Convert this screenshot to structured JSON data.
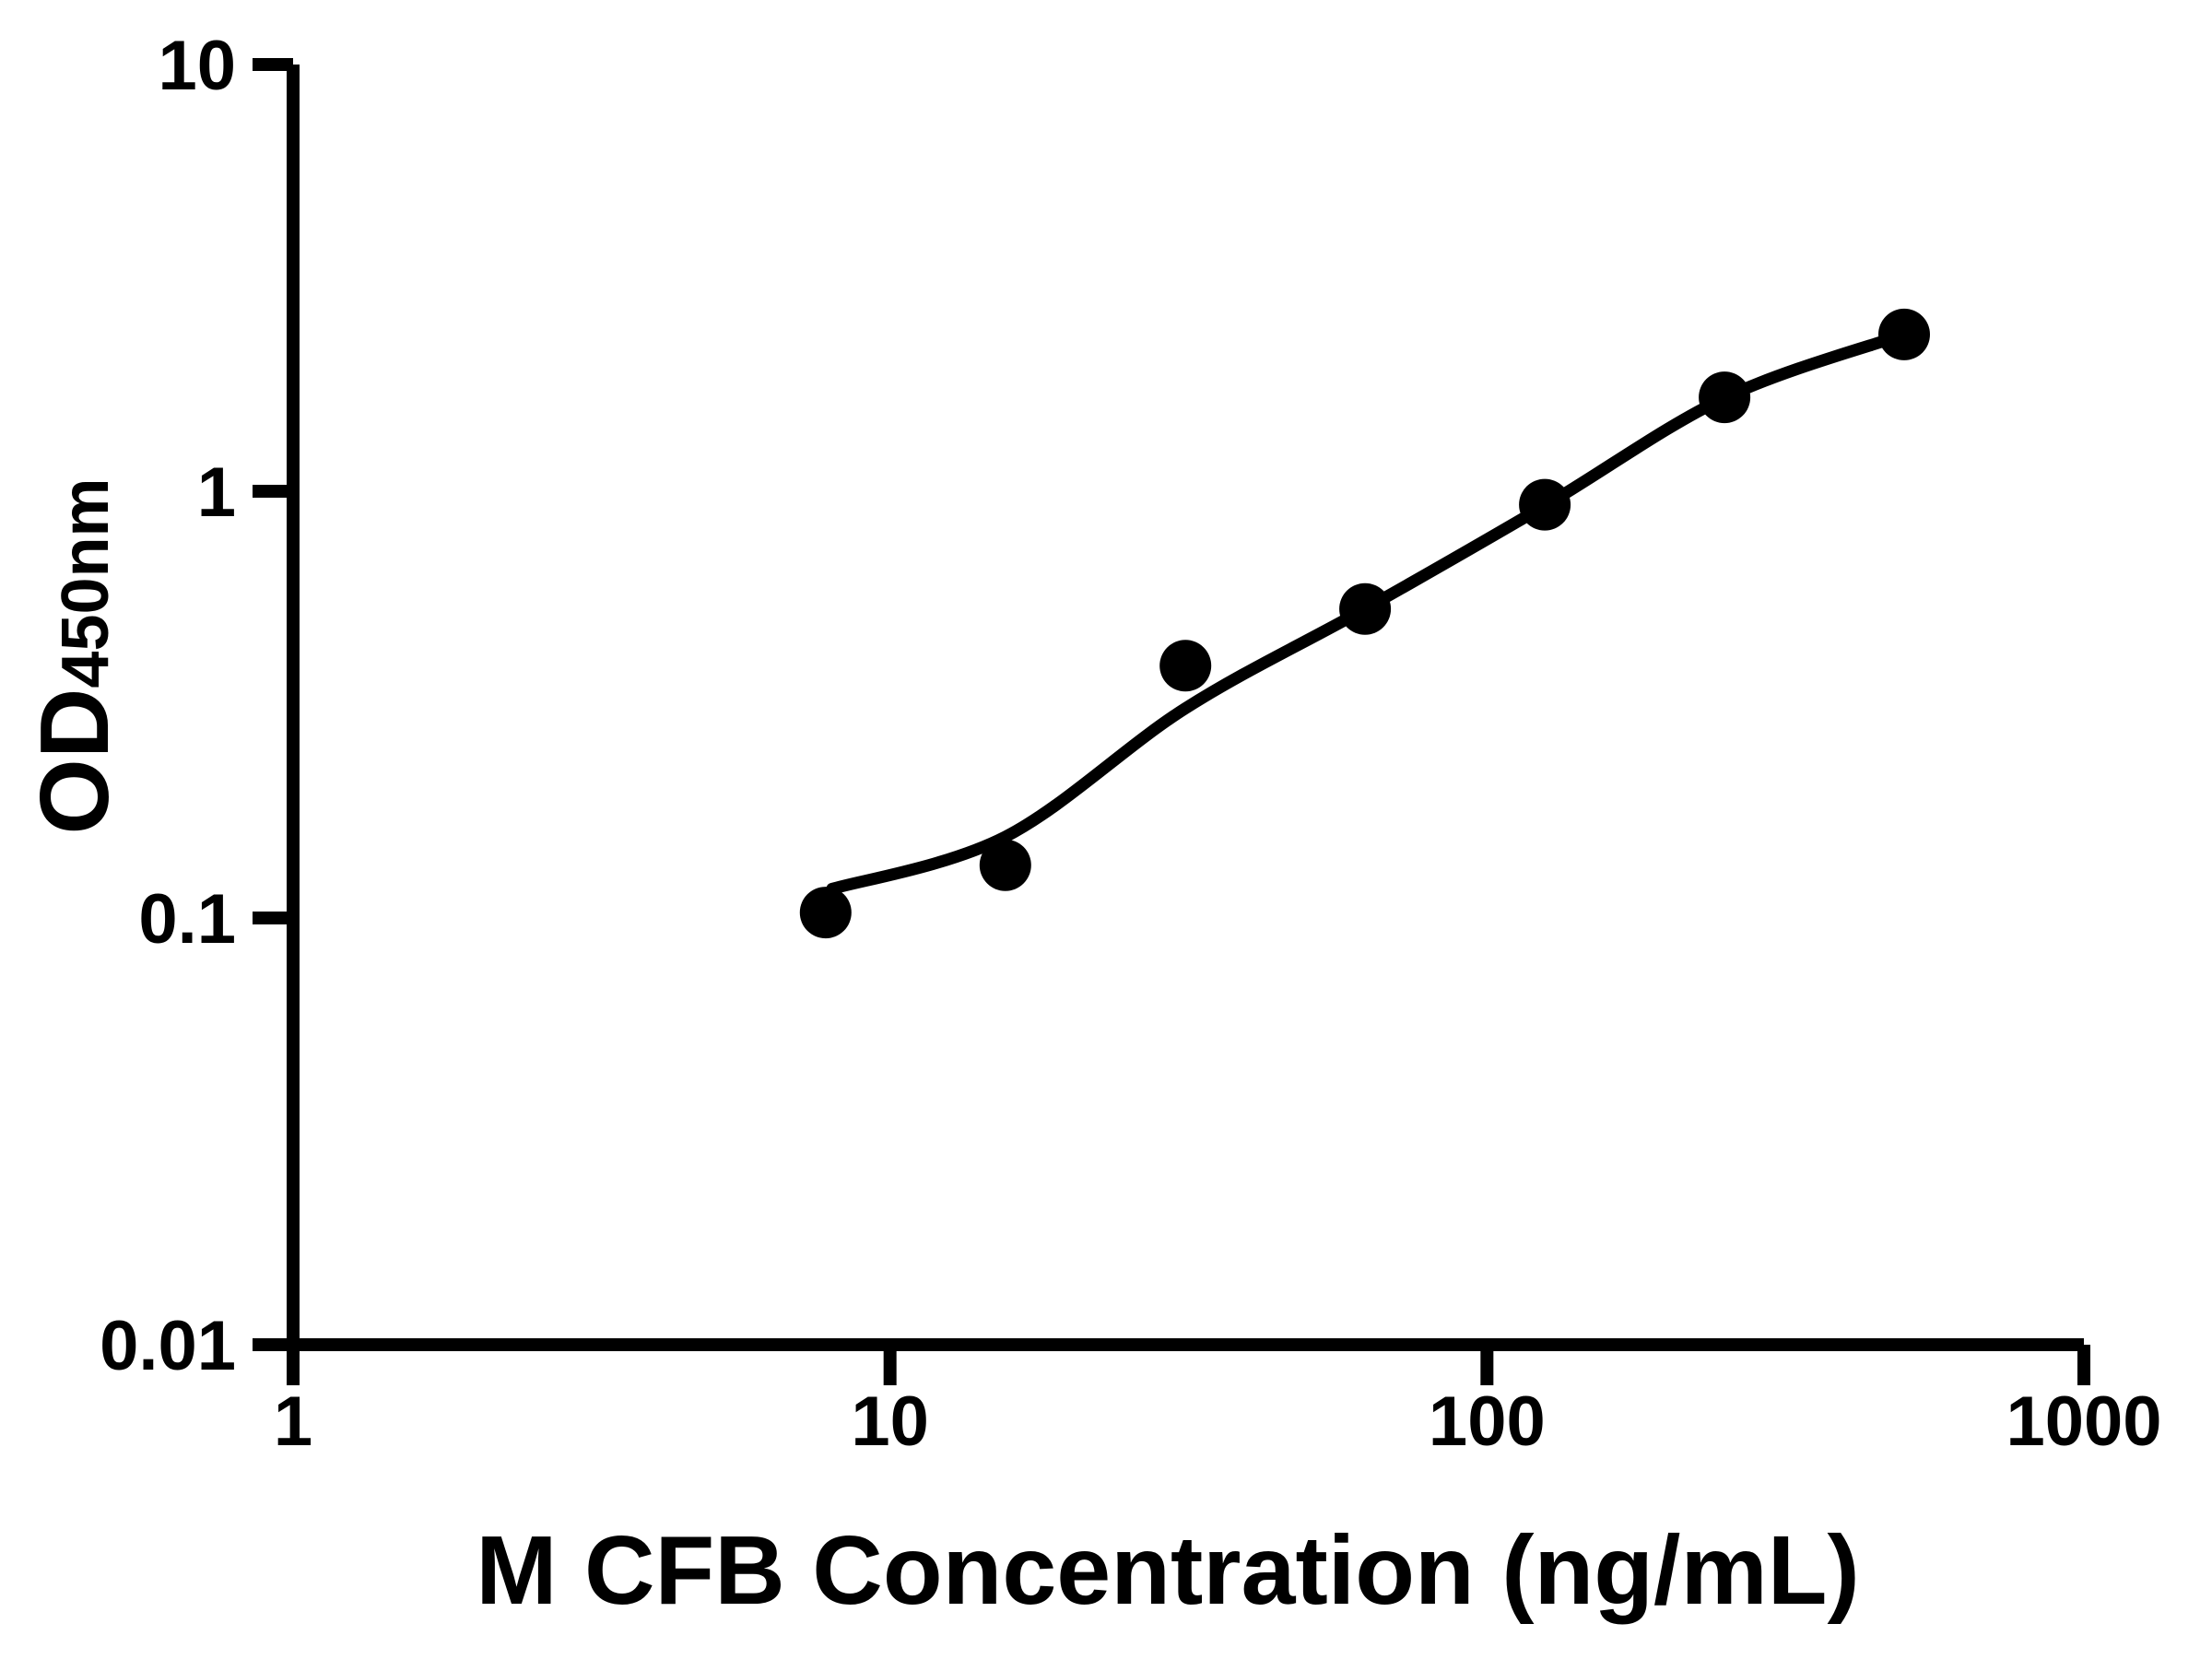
{
  "chart_data": {
    "type": "scatter",
    "title": "",
    "xlabel": "M CFB Concentration (ng/mL)",
    "ylabel_main": "OD",
    "ylabel_subscript": "450nm",
    "x_scale": "log10",
    "y_scale": "log10",
    "xlim": [
      1,
      1000
    ],
    "ylim": [
      0.01,
      10
    ],
    "x_ticks": [
      1,
      10,
      100,
      1000
    ],
    "x_tick_labels": [
      "1",
      "10",
      "100",
      "1000"
    ],
    "y_ticks": [
      0.01,
      0.1,
      1,
      10
    ],
    "y_tick_labels": [
      "0.01",
      "0.1",
      "1",
      "10"
    ],
    "grid": false,
    "legend": null,
    "background_color": "#ffffff",
    "axis_color": "#000000",
    "marker": {
      "shape": "circle",
      "color": "#000000",
      "radius_px": 28
    },
    "line_color": "#000000",
    "points": {
      "x": [
        7.8,
        15.6,
        31.25,
        62.5,
        125,
        250,
        500
      ],
      "y": [
        0.103,
        0.133,
        0.39,
        0.53,
        0.93,
        1.66,
        2.33
      ]
    },
    "fit_curve": {
      "description": "smooth 4PL-style fitted standard curve drawn from first to last point",
      "x": [
        8,
        15.6,
        31.25,
        62.5,
        125,
        250,
        500
      ],
      "y": [
        0.117,
        0.155,
        0.31,
        0.53,
        0.925,
        1.655,
        2.33
      ]
    }
  }
}
